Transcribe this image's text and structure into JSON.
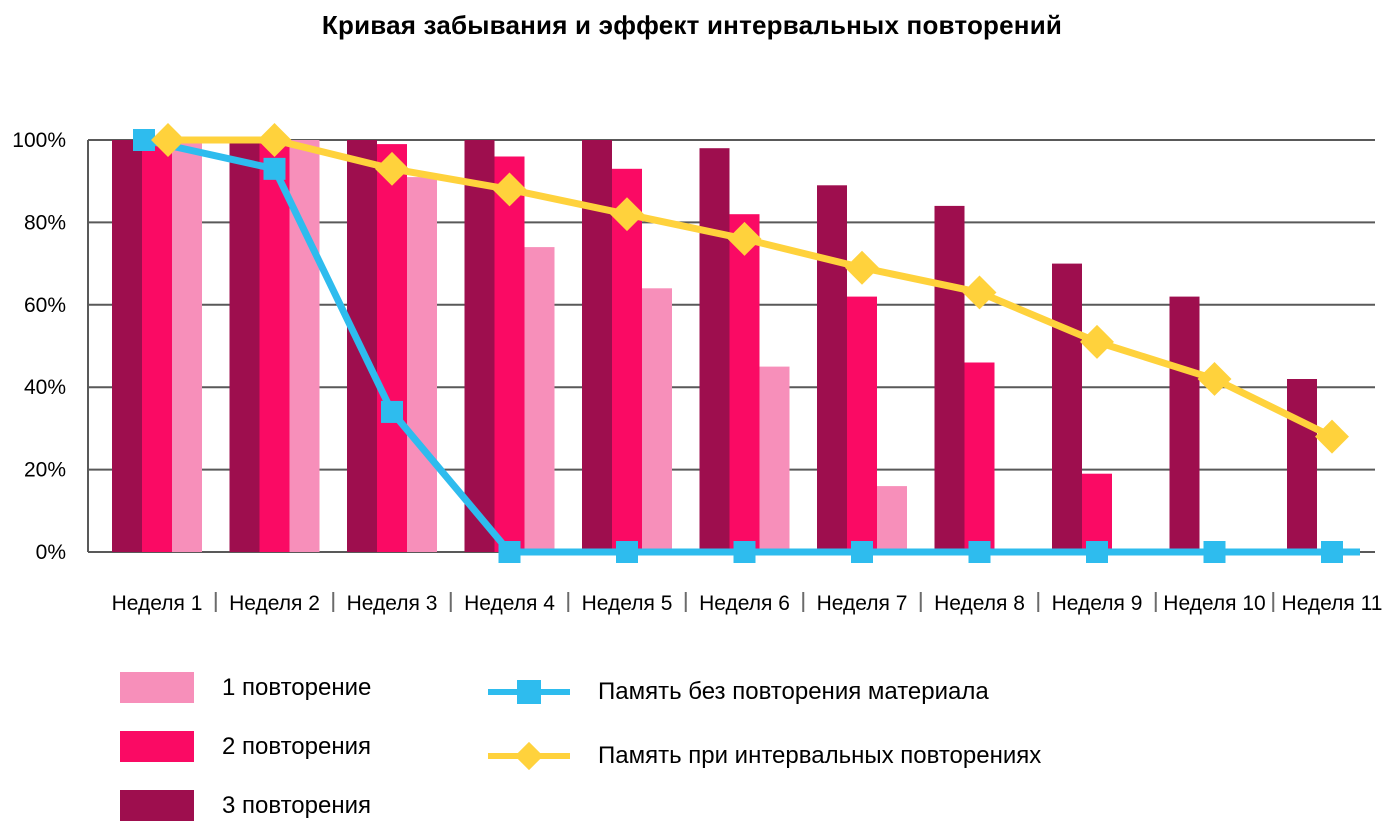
{
  "page": {
    "background_color": "#ffffff",
    "text_color": "#000000"
  },
  "chart_data": {
    "type": "bar",
    "subtype": "grouped-bars-with-line-overlay",
    "title": "Кривая забывания и эффект интервальных повторений",
    "categories": [
      "Неделя 1",
      "Неделя 2",
      "Неделя 3",
      "Неделя 4",
      "Неделя 5",
      "Неделя 6",
      "Неделя 7",
      "Неделя 8",
      "Неделя 9",
      "Неделя 10",
      "Неделя 11"
    ],
    "xlabel": "",
    "ylabel": "",
    "ylim": [
      0,
      100
    ],
    "grid": true,
    "gridline_color": "#595959",
    "y_ticks": [
      {
        "label": "100%",
        "value": 100
      },
      {
        "label": "80%",
        "value": 80
      },
      {
        "label": "60%",
        "value": 60
      },
      {
        "label": "40%",
        "value": 40
      },
      {
        "label": "20%",
        "value": 20
      },
      {
        "label": "0%",
        "value": 0
      }
    ],
    "bar_series": [
      {
        "name": "1 повторение",
        "color": "#F78FBA",
        "values": [
          100,
          100,
          91,
          74,
          64,
          45,
          16,
          null,
          null,
          null,
          null
        ]
      },
      {
        "name": "2 повторения",
        "color": "#FA0A64",
        "values": [
          100,
          100,
          99,
          96,
          93,
          82,
          62,
          46,
          19,
          null,
          null
        ]
      },
      {
        "name": "3 повторения",
        "color": "#9E0E4E",
        "values": [
          100,
          100,
          100,
          100,
          100,
          98,
          89,
          84,
          70,
          62,
          42
        ]
      }
    ],
    "line_series": [
      {
        "name": "Память без повторения материала",
        "color": "#2EBCEE",
        "marker": "square",
        "values": [
          100,
          93,
          34,
          0,
          0,
          0,
          0,
          0,
          0,
          0,
          0
        ]
      },
      {
        "name": "Память при интервальных повторениях",
        "color": "#FFD23C",
        "marker": "diamond",
        "values": [
          100,
          100,
          93,
          88,
          82,
          76,
          69,
          63,
          51,
          42,
          28
        ]
      }
    ],
    "legend_position": "bottom-left-two-columns"
  }
}
